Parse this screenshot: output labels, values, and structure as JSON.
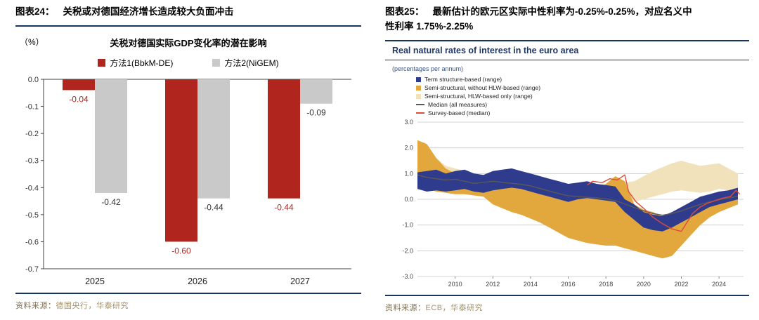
{
  "left_panel": {
    "fig_label": "图表24：",
    "fig_title": "关税或对德国经济增长造成较大负面冲击",
    "source_label": "资料来源：",
    "source_text": "德国央行，华泰研究"
  },
  "right_panel": {
    "fig_label": "图表25：",
    "fig_title_line1": "最新估计的欧元区实际中性利率为-0.25%-0.25%，对应名义中",
    "fig_title_line2": "性利率 1.75%-2.25%",
    "source_label": "资料来源：",
    "source_text": "ECB，华泰研究"
  },
  "chart_data": [
    {
      "type": "bar",
      "title": "关税对德国实际GDP变化率的潜在影响",
      "unit_label": "（%）",
      "categories": [
        "2025",
        "2026",
        "2027"
      ],
      "series": [
        {
          "name": "方法1(BbkM-DE)",
          "color": "#B0261F",
          "label_color": "#B0261F",
          "values": [
            -0.04,
            -0.6,
            -0.44
          ]
        },
        {
          "name": "方法2(NiGEM)",
          "color": "#C9C9C9",
          "label_color": "#333333",
          "values": [
            -0.42,
            -0.44,
            -0.09
          ]
        }
      ],
      "xlabel": "",
      "ylabel": "%",
      "ylim": [
        -0.7,
        0
      ],
      "ytick_step": 0.1,
      "grid": false,
      "legend_position": "top"
    },
    {
      "type": "area",
      "title": "Real natural rates of interest in the euro area",
      "subtitle": "(percentages per annum)",
      "xlabel": "",
      "ylabel": "percentages per annum",
      "ylim": [
        -3,
        3
      ],
      "xlim": [
        2008,
        2025.3
      ],
      "xticks": [
        2010,
        2012,
        2014,
        2016,
        2018,
        2020,
        2022,
        2024
      ],
      "grid": true,
      "legend_position": "top-left",
      "legend": [
        {
          "label": "Term structure-based (range)",
          "color": "#2F3C8E",
          "type": "square"
        },
        {
          "label": "Semi-structural, without HLW-based (range)",
          "color": "#E2A83E",
          "type": "square"
        },
        {
          "label": "Semi-structural, HLW-based only (range)",
          "color": "#F2E2BC",
          "type": "square"
        },
        {
          "label": "Median (all measures)",
          "color": "#595959",
          "type": "line"
        },
        {
          "label": "Survey-based (median)",
          "color": "#E14B39",
          "type": "line"
        }
      ],
      "bands": [
        {
          "name": "semi-structural-hlw-only-range",
          "color": "#F2E2BC",
          "points": [
            [
              2008,
              0.8,
              2.2
            ],
            [
              2008.5,
              0.7,
              2.0
            ],
            [
              2009,
              0.6,
              1.6
            ],
            [
              2009.5,
              0.55,
              1.3
            ],
            [
              2010,
              0.5,
              1.2
            ],
            [
              2010.5,
              0.45,
              1.1
            ],
            [
              2011,
              0.4,
              1.0
            ],
            [
              2011.5,
              0.35,
              0.95
            ],
            [
              2012,
              0.3,
              0.9
            ],
            [
              2012.5,
              0.28,
              0.85
            ],
            [
              2013,
              0.25,
              0.8
            ],
            [
              2013.5,
              0.22,
              0.8
            ],
            [
              2014,
              0.2,
              0.75
            ],
            [
              2014.5,
              0.1,
              0.7
            ],
            [
              2015,
              0.0,
              0.6
            ],
            [
              2015.5,
              -0.1,
              0.55
            ],
            [
              2016,
              -0.2,
              0.5
            ],
            [
              2016.5,
              -0.25,
              0.5
            ],
            [
              2017,
              -0.3,
              0.5
            ],
            [
              2017.5,
              -0.3,
              0.55
            ],
            [
              2018,
              -0.3,
              0.6
            ],
            [
              2018.5,
              -0.25,
              0.6
            ],
            [
              2019,
              -0.2,
              0.65
            ],
            [
              2019.5,
              -0.1,
              0.7
            ],
            [
              2020,
              0.0,
              0.9
            ],
            [
              2020.5,
              0.1,
              1.1
            ],
            [
              2021,
              0.2,
              1.25
            ],
            [
              2021.5,
              0.3,
              1.4
            ],
            [
              2022,
              0.35,
              1.5
            ],
            [
              2022.5,
              0.3,
              1.4
            ],
            [
              2023,
              0.25,
              1.3
            ],
            [
              2023.5,
              0.3,
              1.35
            ],
            [
              2024,
              0.4,
              1.4
            ],
            [
              2024.5,
              0.35,
              1.2
            ],
            [
              2025,
              0.3,
              1.0
            ]
          ]
        },
        {
          "name": "semi-structural-without-hlw-range",
          "color": "#E2A83E",
          "points": [
            [
              2008,
              0.5,
              2.3
            ],
            [
              2008.5,
              0.4,
              2.15
            ],
            [
              2009,
              0.3,
              1.6
            ],
            [
              2009.5,
              0.25,
              1.2
            ],
            [
              2010,
              0.2,
              1.0
            ],
            [
              2010.5,
              0.2,
              1.0
            ],
            [
              2011,
              0.15,
              0.95
            ],
            [
              2011.5,
              0.1,
              0.9
            ],
            [
              2012,
              -0.2,
              0.8
            ],
            [
              2012.5,
              -0.35,
              0.75
            ],
            [
              2013,
              -0.5,
              0.7
            ],
            [
              2013.5,
              -0.6,
              0.6
            ],
            [
              2014,
              -0.75,
              0.55
            ],
            [
              2014.5,
              -0.9,
              0.45
            ],
            [
              2015,
              -1.1,
              0.35
            ],
            [
              2015.5,
              -1.3,
              0.3
            ],
            [
              2016,
              -1.5,
              0.25
            ],
            [
              2016.5,
              -1.6,
              0.2
            ],
            [
              2017,
              -1.7,
              0.15
            ],
            [
              2017.5,
              -1.75,
              0.3
            ],
            [
              2018,
              -1.8,
              0.6
            ],
            [
              2018.5,
              -1.8,
              0.9
            ],
            [
              2019,
              -1.9,
              0.7
            ],
            [
              2019.5,
              -2.0,
              -0.2
            ],
            [
              2020,
              -2.1,
              -0.4
            ],
            [
              2020.5,
              -2.2,
              -0.5
            ],
            [
              2021,
              -2.3,
              -0.7
            ],
            [
              2021.5,
              -2.2,
              -0.8
            ],
            [
              2022,
              -1.8,
              -0.5
            ],
            [
              2022.5,
              -1.4,
              -0.2
            ],
            [
              2023,
              -1.0,
              0.0
            ],
            [
              2023.5,
              -0.7,
              0.15
            ],
            [
              2024,
              -0.5,
              0.25
            ],
            [
              2024.5,
              -0.35,
              0.3
            ],
            [
              2025,
              -0.2,
              0.35
            ]
          ]
        },
        {
          "name": "term-structure-range",
          "color": "#2F3C8E",
          "points": [
            [
              2008,
              0.4,
              1.05
            ],
            [
              2008.5,
              0.3,
              1.1
            ],
            [
              2009,
              0.35,
              1.15
            ],
            [
              2009.5,
              0.3,
              1.0
            ],
            [
              2010,
              0.35,
              1.1
            ],
            [
              2010.5,
              0.4,
              1.15
            ],
            [
              2011,
              0.3,
              1.0
            ],
            [
              2011.5,
              0.25,
              0.95
            ],
            [
              2012,
              0.35,
              1.1
            ],
            [
              2012.5,
              0.4,
              1.15
            ],
            [
              2013,
              0.45,
              1.2
            ],
            [
              2013.5,
              0.4,
              1.1
            ],
            [
              2014,
              0.3,
              1.0
            ],
            [
              2014.5,
              0.2,
              0.9
            ],
            [
              2015,
              0.1,
              0.8
            ],
            [
              2015.5,
              0.0,
              0.7
            ],
            [
              2016,
              -0.1,
              0.6
            ],
            [
              2016.5,
              0.0,
              0.65
            ],
            [
              2017,
              0.05,
              0.7
            ],
            [
              2017.5,
              0.0,
              0.6
            ],
            [
              2018,
              -0.05,
              0.55
            ],
            [
              2018.5,
              -0.1,
              0.5
            ],
            [
              2019,
              -0.5,
              0.0
            ],
            [
              2019.5,
              -0.8,
              -0.2
            ],
            [
              2020,
              -1.1,
              -0.5
            ],
            [
              2020.5,
              -1.2,
              -0.6
            ],
            [
              2021,
              -1.25,
              -0.65
            ],
            [
              2021.5,
              -1.1,
              -0.5
            ],
            [
              2022,
              -0.9,
              -0.3
            ],
            [
              2022.5,
              -0.7,
              -0.1
            ],
            [
              2023,
              -0.5,
              0.1
            ],
            [
              2023.5,
              -0.3,
              0.2
            ],
            [
              2024,
              -0.2,
              0.3
            ],
            [
              2024.5,
              -0.1,
              0.35
            ],
            [
              2025,
              0.0,
              0.45
            ]
          ]
        }
      ],
      "lines": [
        {
          "name": "median-all-measures",
          "color": "#595959",
          "width": 1.4,
          "points": [
            [
              2008,
              0.95
            ],
            [
              2008.5,
              0.85
            ],
            [
              2009,
              0.8
            ],
            [
              2009.5,
              0.75
            ],
            [
              2010,
              0.78
            ],
            [
              2010.5,
              0.7
            ],
            [
              2011,
              0.62
            ],
            [
              2011.5,
              0.66
            ],
            [
              2012,
              0.7
            ],
            [
              2012.5,
              0.66
            ],
            [
              2013,
              0.62
            ],
            [
              2013.5,
              0.58
            ],
            [
              2014,
              0.52
            ],
            [
              2014.5,
              0.42
            ],
            [
              2015,
              0.32
            ],
            [
              2015.5,
              0.22
            ],
            [
              2016,
              0.14
            ],
            [
              2016.5,
              0.1
            ],
            [
              2017,
              0.08
            ],
            [
              2017.5,
              0.05
            ],
            [
              2018,
              0.02
            ],
            [
              2018.5,
              -0.05
            ],
            [
              2019,
              -0.18
            ],
            [
              2019.5,
              -0.32
            ],
            [
              2020,
              -0.45
            ],
            [
              2020.5,
              -0.55
            ],
            [
              2021,
              -0.62
            ],
            [
              2021.5,
              -0.55
            ],
            [
              2022,
              -0.45
            ],
            [
              2022.5,
              -0.32
            ],
            [
              2023,
              -0.2
            ],
            [
              2023.5,
              -0.1
            ],
            [
              2024,
              -0.02
            ],
            [
              2024.5,
              0.05
            ],
            [
              2025,
              0.12
            ]
          ]
        },
        {
          "name": "survey-based-median",
          "color": "#E14B39",
          "width": 1.4,
          "points": [
            [
              2017,
              0.55
            ],
            [
              2017.3,
              0.7
            ],
            [
              2017.8,
              0.65
            ],
            [
              2018.2,
              0.8
            ],
            [
              2018.6,
              0.75
            ],
            [
              2019,
              0.95
            ],
            [
              2019.2,
              0.3
            ],
            [
              2019.6,
              -0.1
            ],
            [
              2020,
              -0.35
            ],
            [
              2020.5,
              -0.7
            ],
            [
              2021,
              -0.95
            ],
            [
              2021.5,
              -1.15
            ],
            [
              2022,
              -1.25
            ],
            [
              2022.3,
              -0.9
            ],
            [
              2022.6,
              -0.55
            ],
            [
              2023,
              -0.3
            ],
            [
              2023.4,
              -0.15
            ],
            [
              2023.8,
              -0.05
            ],
            [
              2024.2,
              0.05
            ],
            [
              2024.6,
              0.1
            ],
            [
              2024.9,
              0.35
            ],
            [
              2025.1,
              0.2
            ]
          ]
        }
      ]
    }
  ]
}
